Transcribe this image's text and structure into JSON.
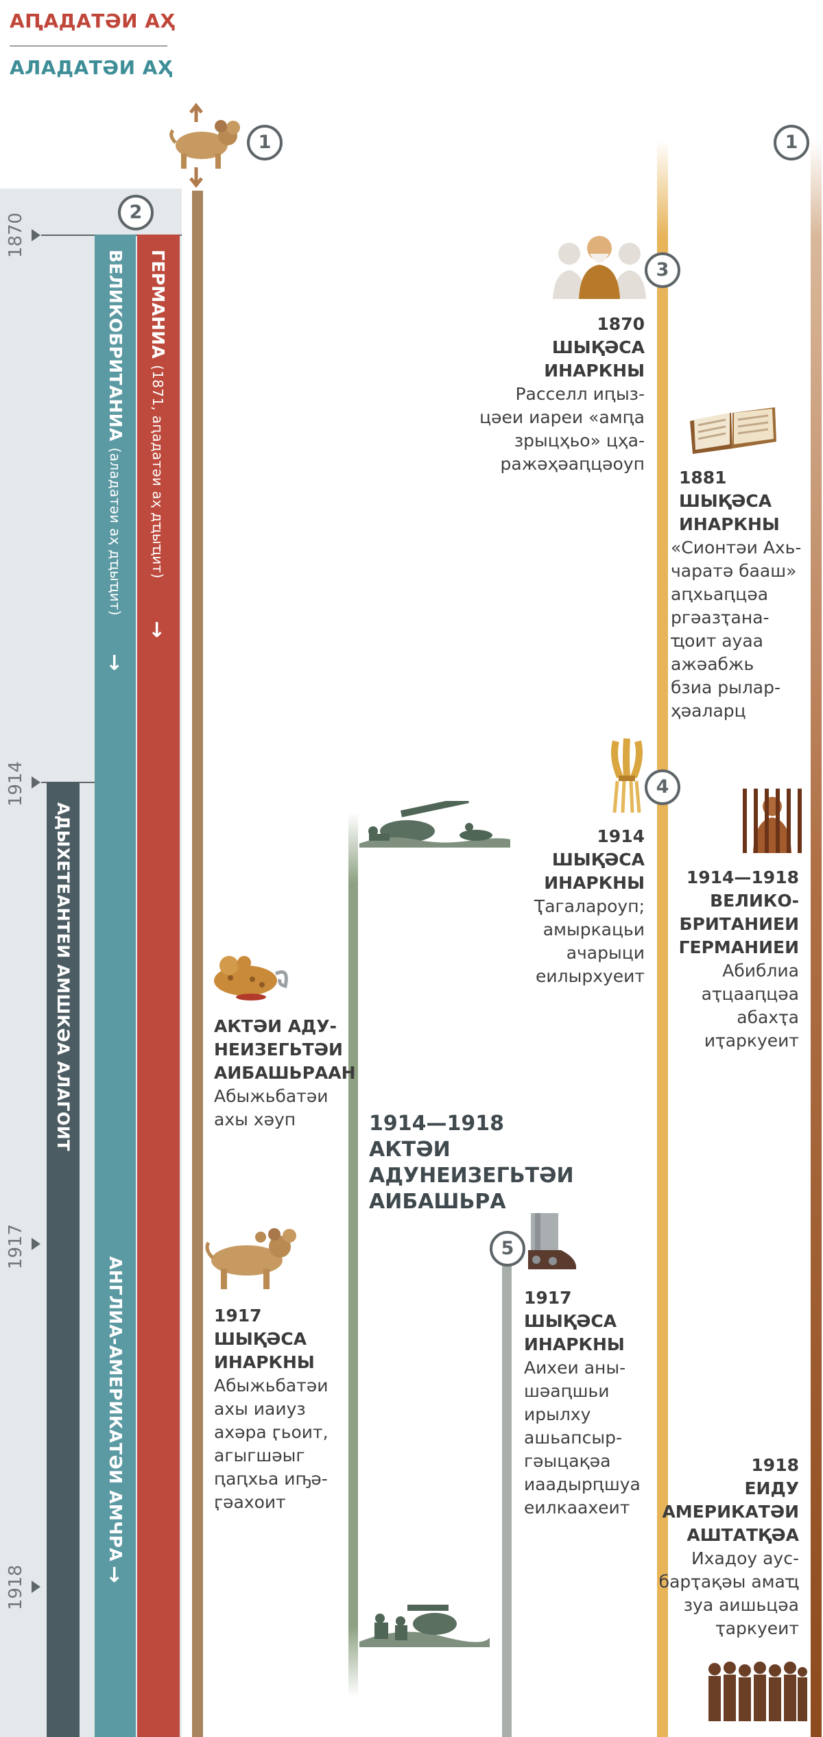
{
  "legend": {
    "first": "АԤАДАТӘИ АҲ",
    "second": "АЛАДАТӘИ АҲ"
  },
  "years": [
    "1870",
    "1914",
    "1917",
    "1918"
  ],
  "markers": [
    "1",
    "2",
    "3",
    "4",
    "5",
    "1"
  ],
  "bars": {
    "germany": {
      "title": "ГЕРМАНИА",
      "note": "(1871, аԥадатәи аҳ дҵыҵит)"
    },
    "britain": {
      "title": "ВЕЛИКОБРИТАНИА",
      "note": "(аладатәи аҳ дҵыҵит)"
    },
    "anglo_american": {
      "title": "АНГЛИА-АМЕРИКАТӘИ АМЧРА"
    },
    "world_power": {
      "title": "АДЫХЕТЕАНТЕИ АМШКӘА АЛАГОИТ"
    }
  },
  "colors": {
    "germany": "#bd4a3d",
    "britain": "#5c9aa3",
    "dark_bar": "#4c5c63",
    "bronze_line": "#a8845f",
    "war_line": "#8ea283",
    "gold_line": "#e7b45a",
    "grey_line": "#a8aeaa",
    "brown_line": "#8e4b1d"
  },
  "events": {
    "e1870": {
      "heading": "1870\nШЫҚӘСА\nИНАРКНЫ",
      "text": "Расселл иԥыз-\nцәеи иареи «амԥа\nзрыцҳьо» цҳа-\nражәҳәаԥцәоуп"
    },
    "e1881": {
      "heading": "1881\nШЫҚӘСА\nИНАРКНЫ",
      "text": "«Сионтәи Ахь-\nчаратә бааш»\nаԥхьаԥцәа\nргәазҭана-\nҵоит ауаа\nажәабжь\nбзиа рылар-\nҳәаларц"
    },
    "e1914": {
      "heading": "1914\nШЫҚӘСА\nИНАРКНЫ",
      "text": "Ҭагалароуп;\nамыркацьи\nачарыци\nеилырхуеит"
    },
    "e1914_1918_right": {
      "heading": "1914—1918\nВЕЛИКО-\nБРИТАНИЕИ\nГЕРМАНИЕИ",
      "text": "Абиблиа\nаҭцааԥцәа\nабахҭа\nиҭаркуеит"
    },
    "wound": {
      "heading": "АКТӘИ АДУ-\nНЕИЗЕГЬТӘИ\nАИБАШЬРААН",
      "text": "Абыжьбатәи\nахы хәуп"
    },
    "war": {
      "heading": "1914—1918\nАКТӘИ\nАДУНЕИЗЕГЬТӘИ\nАИБАШЬРА"
    },
    "e1917_left": {
      "heading": "1917\nШЫҚӘСА\nИНАРКНЫ",
      "text": "Абыжьбатәи\nахы иаиуз\nахәра ӷьоит,\nагыгшәыг\nԥаԥхьа иҧә-\nӷәахоит"
    },
    "e1917_mid": {
      "heading": "1917\nШЫҚӘСА\nИНАРКНЫ",
      "text": "Аихеи аны-\nшәаԥшьи\nирылху\nашьапсыр-\nгәыцақәа\nиаадырԥшуа\nеилкаахеит"
    },
    "e1918": {
      "heading": "1918\nЕИДУ\nАМЕРИКАТӘИ\nАШТАТҚӘА",
      "text": "Ихадоу аус-\nбарҭақәы амаҵ\nзуа аишьцәа\nҭаркуеит"
    }
  }
}
